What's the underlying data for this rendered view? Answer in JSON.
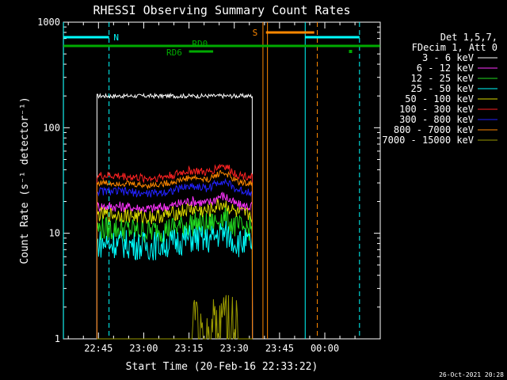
{
  "chart_data": {
    "type": "line",
    "title": "RHESSI Observing Summary Count Rates",
    "xlabel": "Start Time (20-Feb-16 22:33:22)",
    "ylabel": "Count Rate (s⁻¹ detector⁻¹)",
    "yscale": "log",
    "ylim": [
      1,
      1000
    ],
    "xlim_minutes_after_2230": [
      3.37,
      108.37
    ],
    "x_ticks": [
      {
        "label": "22:45",
        "min": 15
      },
      {
        "label": "23:00",
        "min": 30
      },
      {
        "label": "23:15",
        "min": 45
      },
      {
        "label": "23:30",
        "min": 60
      },
      {
        "label": "23:45",
        "min": 75
      },
      {
        "label": "00:00",
        "min": 90
      }
    ],
    "y_ticks": [
      {
        "label": "1",
        "value": 1
      },
      {
        "label": "10",
        "value": 10
      },
      {
        "label": "100",
        "value": 100
      },
      {
        "label": "1000",
        "value": 1000
      }
    ],
    "legend_header": [
      "Det 1,5,7,",
      "FDecim 1, Att 0"
    ],
    "legend_placement": "right",
    "series": [
      {
        "name": "3 - 6 keV",
        "color": "#ffffff",
        "level": 200,
        "noise": 0.02,
        "start_min": 14.5,
        "end_min": 66.0
      },
      {
        "name": "6 - 12 keV",
        "color": "#ff33ff",
        "level": 18,
        "noise": 0.05,
        "start_min": 14.5,
        "end_min": 66.0
      },
      {
        "name": "12 - 25 keV",
        "color": "#22dd22",
        "level": 11,
        "noise": 0.12,
        "start_min": 14.5,
        "end_min": 66.0
      },
      {
        "name": "25 - 50 keV",
        "color": "#00ffff",
        "level": 8,
        "noise": 0.14,
        "start_min": 14.5,
        "end_min": 66.0
      },
      {
        "name": "50 - 100 keV",
        "color": "#dddd00",
        "level": 15,
        "noise": 0.07,
        "start_min": 14.5,
        "end_min": 66.0
      },
      {
        "name": "100 - 300 keV",
        "color": "#ff2222",
        "level": 35,
        "noise": 0.04,
        "start_min": 14.5,
        "end_min": 66.0
      },
      {
        "name": "300 - 800 keV",
        "color": "#2222ff",
        "level": 25,
        "noise": 0.04,
        "start_min": 14.5,
        "end_min": 66.0
      },
      {
        "name": "800 - 7000 keV",
        "color": "#ff8800",
        "level": 30,
        "noise": 0.03,
        "start_min": 14.5,
        "end_min": 66.0
      },
      {
        "name": "7000 - 15000 keV",
        "color": "#999900",
        "level": 1.4,
        "noise": 0.5,
        "start_min": 14.5,
        "end_min": 66.0
      }
    ],
    "annotations": {
      "N": {
        "label": "N",
        "color": "#00ffff"
      },
      "S": {
        "label": "S",
        "color": "#ff8800"
      },
      "RD0": {
        "label": "RD0",
        "color": "#00aa00"
      },
      "RD6": {
        "label": "RD6",
        "color": "#00aa00"
      }
    },
    "grid": false
  },
  "footer": {
    "timestamp": "26-Oct-2021 20:28"
  }
}
